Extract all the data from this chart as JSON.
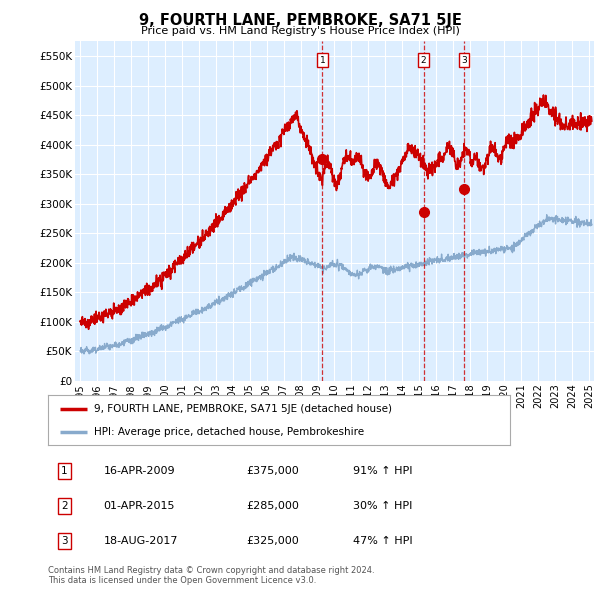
{
  "title": "9, FOURTH LANE, PEMBROKE, SA71 5JE",
  "subtitle": "Price paid vs. HM Land Registry's House Price Index (HPI)",
  "legend_line1": "9, FOURTH LANE, PEMBROKE, SA71 5JE (detached house)",
  "legend_line2": "HPI: Average price, detached house, Pembrokeshire",
  "footnote1": "Contains HM Land Registry data © Crown copyright and database right 2024.",
  "footnote2": "This data is licensed under the Open Government Licence v3.0.",
  "transactions": [
    {
      "num": 1,
      "date": "16-APR-2009",
      "price": "£375,000",
      "change": "91% ↑ HPI",
      "x_year": 2009.29
    },
    {
      "num": 2,
      "date": "01-APR-2015",
      "price": "£285,000",
      "change": "30% ↑ HPI",
      "x_year": 2015.25
    },
    {
      "num": 3,
      "date": "18-AUG-2017",
      "price": "£325,000",
      "change": "47% ↑ HPI",
      "x_year": 2017.63
    }
  ],
  "transaction_prices": [
    375000,
    285000,
    325000
  ],
  "red_line_color": "#cc0000",
  "blue_line_color": "#88aacc",
  "background_color": "#ddeeff",
  "plot_bg_color": "#ffffff",
  "grid_color": "#cccccc",
  "ylim": [
    0,
    575000
  ],
  "xlim_start": 1994.7,
  "xlim_end": 2025.3,
  "yticks": [
    0,
    50000,
    100000,
    150000,
    200000,
    250000,
    300000,
    350000,
    400000,
    450000,
    500000,
    550000
  ],
  "ytick_labels": [
    "£0",
    "£50K",
    "£100K",
    "£150K",
    "£200K",
    "£250K",
    "£300K",
    "£350K",
    "£400K",
    "£450K",
    "£500K",
    "£550K"
  ],
  "xticks": [
    1995,
    1996,
    1997,
    1998,
    1999,
    2000,
    2001,
    2002,
    2003,
    2004,
    2005,
    2006,
    2007,
    2008,
    2009,
    2010,
    2011,
    2012,
    2013,
    2014,
    2015,
    2016,
    2017,
    2018,
    2019,
    2020,
    2021,
    2022,
    2023,
    2024,
    2025
  ]
}
